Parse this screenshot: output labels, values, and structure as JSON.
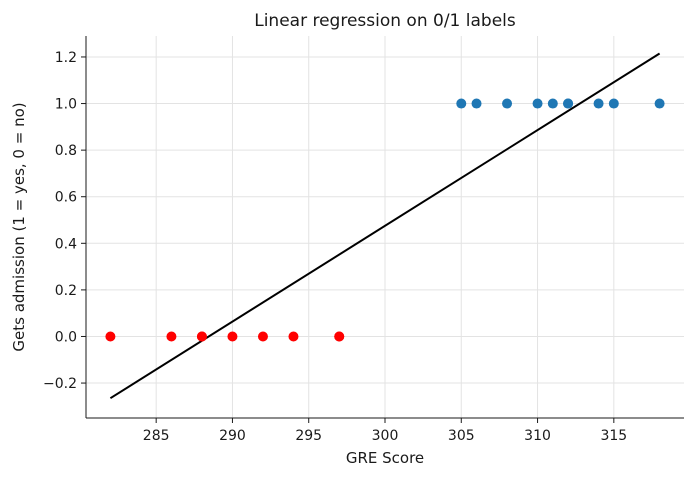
{
  "chart_data": {
    "type": "scatter",
    "title": "Linear regression on 0/1 labels",
    "xlabel": "GRE Score",
    "ylabel": "Gets admission (1 = yes, 0 = no)",
    "xlim": [
      280.4,
      319.6
    ],
    "ylim": [
      -0.35,
      1.29
    ],
    "xticks": [
      285,
      290,
      295,
      300,
      305,
      310,
      315
    ],
    "yticks": [
      -0.2,
      0.0,
      0.2,
      0.4,
      0.6,
      0.8,
      1.0,
      1.2
    ],
    "ytick_labels": [
      "−0.2",
      "0.0",
      "0.2",
      "0.4",
      "0.6",
      "0.8",
      "1.0",
      "1.2"
    ],
    "grid": true,
    "series": [
      {
        "color": "#ff0000",
        "x": [
          282,
          286,
          288,
          288,
          290,
          292,
          294,
          297,
          297
        ],
        "y": [
          0,
          0,
          0,
          0,
          0,
          0,
          0,
          0,
          0
        ]
      },
      {
        "color": "#1f77b4",
        "x": [
          305,
          306,
          308,
          310,
          311,
          312,
          312,
          314,
          315,
          318
        ],
        "y": [
          1,
          1,
          1,
          1,
          1,
          1,
          1,
          1,
          1,
          1
        ]
      }
    ],
    "fit_line": {
      "color": "#000000",
      "x": [
        282,
        318
      ],
      "y": [
        -0.265,
        1.215
      ]
    }
  }
}
